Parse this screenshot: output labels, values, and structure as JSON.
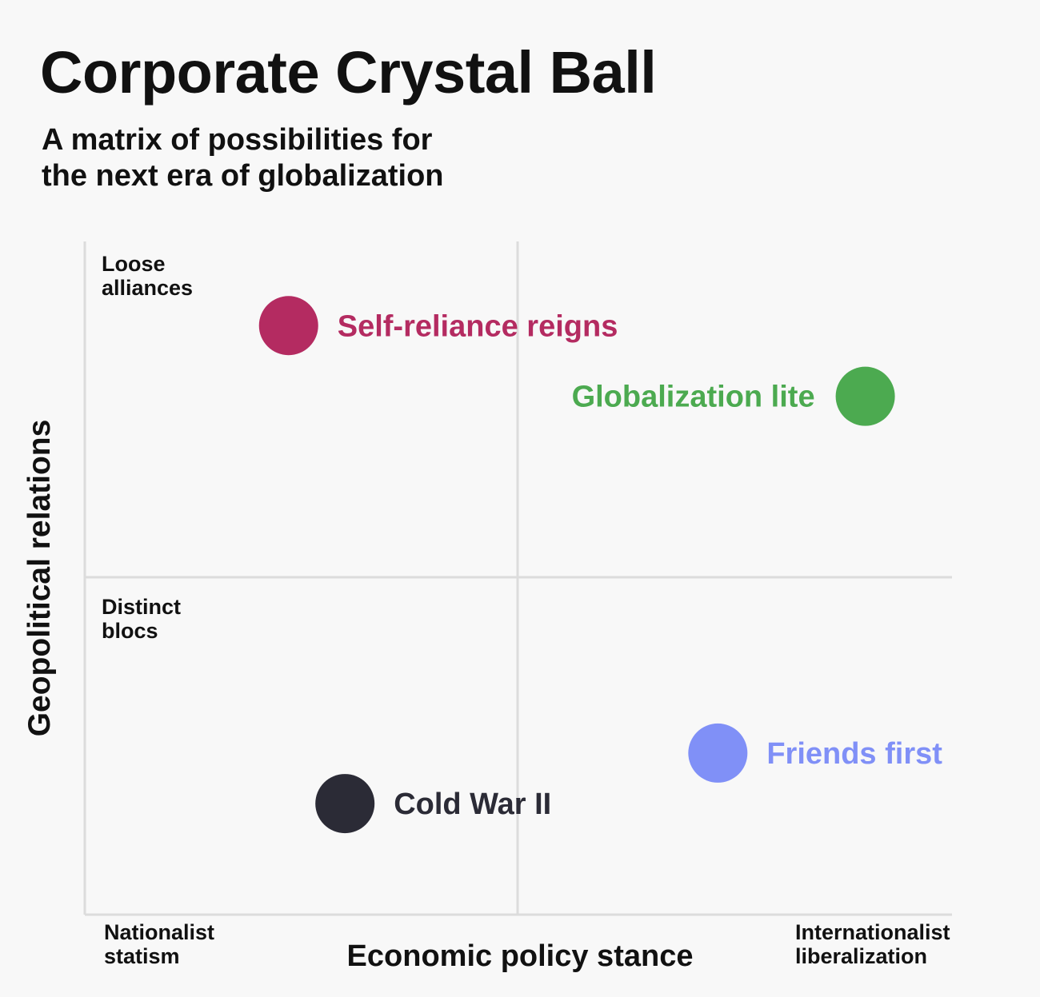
{
  "title": "Corporate Crystal Ball",
  "subtitle": {
    "line1": "A matrix of possibilities for",
    "line2": "the next era of globalization"
  },
  "chart_data": {
    "type": "scatter",
    "xlabel": "Economic policy stance",
    "ylabel": "Geopolitical relations",
    "x_ticks": {
      "low": [
        "Nationalist",
        "statism"
      ],
      "high": [
        "Internationalist",
        "liberalization"
      ]
    },
    "y_ticks": {
      "high": [
        "Loose",
        "alliances"
      ],
      "low": [
        "Distinct",
        "blocs"
      ]
    },
    "xlim": [
      -1,
      1
    ],
    "ylim": [
      -1,
      1
    ],
    "grid": "quadrant dividers at 0",
    "points": [
      {
        "label": "Self-reliance reigns",
        "x": -0.53,
        "y": 0.75,
        "color": "#b42b61",
        "label_side": "right"
      },
      {
        "label": "Globalization lite",
        "x": 0.8,
        "y": 0.54,
        "color": "#4caa50",
        "label_side": "left"
      },
      {
        "label": "Friends first",
        "x": 0.46,
        "y": -0.52,
        "color": "#8090f7",
        "label_side": "right"
      },
      {
        "label": "Cold War II",
        "x": -0.4,
        "y": -0.67,
        "color": "#2b2b36",
        "label_side": "right"
      }
    ]
  }
}
